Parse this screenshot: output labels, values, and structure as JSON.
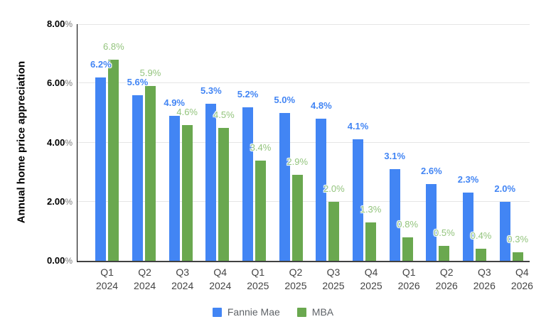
{
  "chart_data": {
    "type": "bar",
    "title": "",
    "xlabel": "",
    "ylabel": "Annual home price appreciation",
    "ylim": [
      0,
      8
    ],
    "grid": true,
    "legend_position": "bottom",
    "y_ticks": [
      {
        "value": 0,
        "num": "0.00",
        "suffix": "%"
      },
      {
        "value": 2,
        "num": "2.00",
        "suffix": "%"
      },
      {
        "value": 4,
        "num": "4.00",
        "suffix": "%"
      },
      {
        "value": 6,
        "num": "6.00",
        "suffix": "%"
      },
      {
        "value": 8,
        "num": "8.00",
        "suffix": "%"
      }
    ],
    "categories": [
      {
        "label": "Q1 2024",
        "line1": "Q1",
        "line2": "2024"
      },
      {
        "label": "Q2 2024",
        "line1": "Q2",
        "line2": "2024"
      },
      {
        "label": "Q3 2024",
        "line1": "Q3",
        "line2": "2024"
      },
      {
        "label": "Q4 2024",
        "line1": "Q4",
        "line2": "2024"
      },
      {
        "label": "Q1 2025",
        "line1": "Q1",
        "line2": "2025"
      },
      {
        "label": "Q2 2025",
        "line1": "Q2",
        "line2": "2025"
      },
      {
        "label": "Q3 2025",
        "line1": "Q3",
        "line2": "2025"
      },
      {
        "label": "Q4 2025",
        "line1": "Q4",
        "line2": "2025"
      },
      {
        "label": "Q1 2026",
        "line1": "Q1",
        "line2": "2026"
      },
      {
        "label": "Q2 2026",
        "line1": "Q2",
        "line2": "2026"
      },
      {
        "label": "Q3 2026",
        "line1": "Q3",
        "line2": "2026"
      },
      {
        "label": "Q4 2026",
        "line1": "Q4",
        "line2": "2026"
      }
    ],
    "series": [
      {
        "name": "Fannie Mae",
        "color": "#4285f4",
        "label_color": "#4285f4",
        "label_bold": true,
        "values": [
          6.2,
          5.6,
          4.9,
          5.3,
          5.2,
          5.0,
          4.8,
          4.1,
          3.1,
          2.6,
          2.3,
          2.0
        ],
        "labels": [
          "6.2%",
          "5.6%",
          "4.9%",
          "5.3%",
          "5.2%",
          "5.0%",
          "4.8%",
          "4.1%",
          "3.1%",
          "2.6%",
          "2.3%",
          "2.0%"
        ]
      },
      {
        "name": "MBA",
        "color": "#6aa84f",
        "label_color": "#93c47d",
        "label_bold": false,
        "values": [
          6.8,
          5.9,
          4.6,
          4.5,
          3.4,
          2.9,
          2.0,
          1.3,
          0.8,
          0.5,
          0.4,
          0.3
        ],
        "labels": [
          "6.8%",
          "5.9%",
          "4.6%",
          "4.5%",
          "3.4%",
          "2.9%",
          "2.0%",
          "1.3%",
          "0.8%",
          "0.5%",
          "0.4%",
          "0.3%"
        ]
      }
    ]
  },
  "style": {
    "background": "#ffffff",
    "grid_color": "#e6e6e6",
    "y_axis_line_color": "#000000",
    "x_axis_line_color": "#424242",
    "y_tick_color": "#000000",
    "x_tick_color": "#444444",
    "legend_text_color": "#5f6368"
  }
}
